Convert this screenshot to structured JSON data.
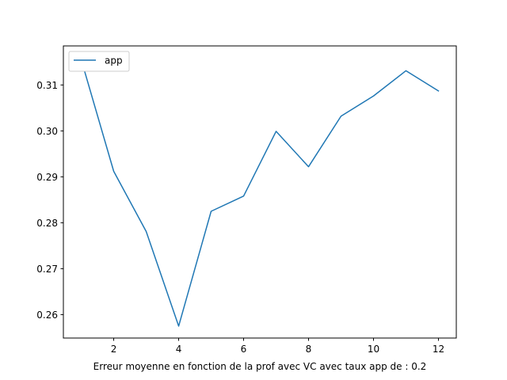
{
  "chart_data": {
    "type": "line",
    "title": "",
    "xlabel": "Erreur moyenne en fonction de la prof avec VC avec taux app de : 0.2",
    "ylabel": "",
    "xlim": [
      0.45,
      12.55
    ],
    "ylim": [
      0.2549,
      0.3185
    ],
    "x_ticks": [
      2,
      4,
      6,
      8,
      10,
      12
    ],
    "x_tick_labels": [
      "2",
      "4",
      "6",
      "8",
      "10",
      "12"
    ],
    "y_ticks": [
      0.26,
      0.27,
      0.28,
      0.29,
      0.3,
      0.31
    ],
    "y_tick_labels": [
      "0.26",
      "0.27",
      "0.28",
      "0.29",
      "0.30",
      "0.31"
    ],
    "grid": false,
    "legend_position": "top-left",
    "series": [
      {
        "name": "app",
        "color": "#1f77b4",
        "x": [
          1,
          2,
          3,
          4,
          5,
          6,
          7,
          8,
          9,
          10,
          11,
          12
        ],
        "y": [
          0.3155,
          0.2912,
          0.2781,
          0.2575,
          0.2825,
          0.2858,
          0.2999,
          0.2922,
          0.3032,
          0.3076,
          0.3131,
          0.3087
        ]
      }
    ]
  }
}
